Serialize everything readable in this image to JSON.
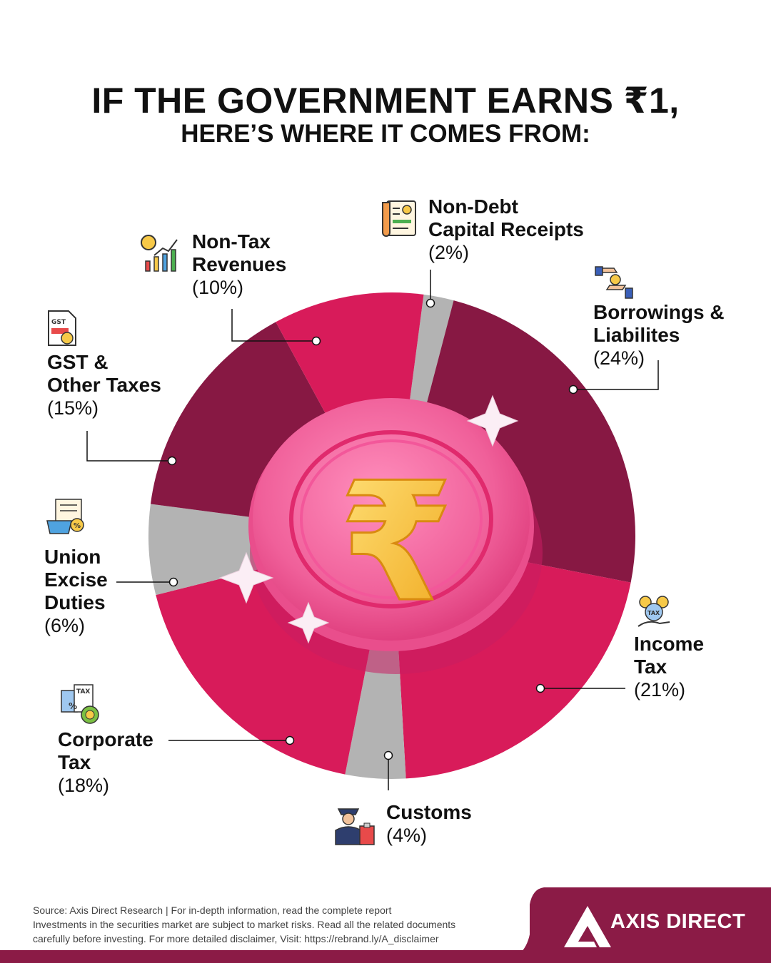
{
  "title_line1": "IF THE GOVERNMENT EARNS ₹1,",
  "title_line2": "HERE’S WHERE IT COMES FROM:",
  "chart_data": {
    "type": "pie",
    "slices": [
      {
        "label": "Non-Debt Capital Receipts",
        "value": 2,
        "pct_text": "(2%)",
        "color": "#b3b3b3"
      },
      {
        "label": "Borrowings & Liabilites",
        "value": 24,
        "pct_text": "(24%)",
        "color": "#871843"
      },
      {
        "label": "Income Tax",
        "value": 21,
        "pct_text": "(21%)",
        "color": "#d81b5a"
      },
      {
        "label": "Customs",
        "value": 4,
        "pct_text": "(4%)",
        "color": "#b3b3b3"
      },
      {
        "label": "Corporate Tax",
        "value": 18,
        "pct_text": "(18%)",
        "color": "#d81b5a"
      },
      {
        "label": "Union Excise Duties",
        "value": 6,
        "pct_text": "(6%)",
        "color": "#b3b3b3"
      },
      {
        "label": "GST & Other Taxes",
        "value": 15,
        "pct_text": "(15%)",
        "color": "#871843"
      },
      {
        "label": "Non-Tax Revenues",
        "value": 10,
        "pct_text": "(10%)",
        "color": "#d81b5a"
      }
    ]
  },
  "labels": {
    "non_debt": {
      "name": "Non-Debt\nCapital Receipts",
      "pct": "(2%)"
    },
    "borrowings": {
      "name": "Borrowings &\nLiabilites",
      "pct": "(24%)"
    },
    "income_tax": {
      "name": "Income\nTax",
      "pct": "(21%)"
    },
    "customs": {
      "name": "Customs",
      "pct": "(4%)"
    },
    "corporate_tax": {
      "name": "Corporate\nTax",
      "pct": "(18%)"
    },
    "excise": {
      "name": "Union\nExcise\nDuties",
      "pct": "(6%)"
    },
    "gst": {
      "name": "GST &\nOther Taxes",
      "pct": "(15%)"
    },
    "non_tax": {
      "name": "Non-Tax\nRevenues",
      "pct": "(10%)"
    }
  },
  "coin_symbol": "₹",
  "icon_text": {
    "gst": "GST",
    "tax": "TAX"
  },
  "footer": {
    "line1": "Source: Axis Direct Research | For in-depth information, read the complete report",
    "line2": "Investments in the securities market are subject to market risks. Read all the related documents",
    "line3": "carefully before investing. For more detailed disclaimer, Visit: https://rebrand.ly/A_disclaimer"
  },
  "brand": "AXIS DIRECT",
  "colors": {
    "dark_maroon": "#871843",
    "pink": "#d81b5a",
    "grey": "#b3b3b3",
    "coin": "#f0609a",
    "gold": "#f7c948"
  }
}
